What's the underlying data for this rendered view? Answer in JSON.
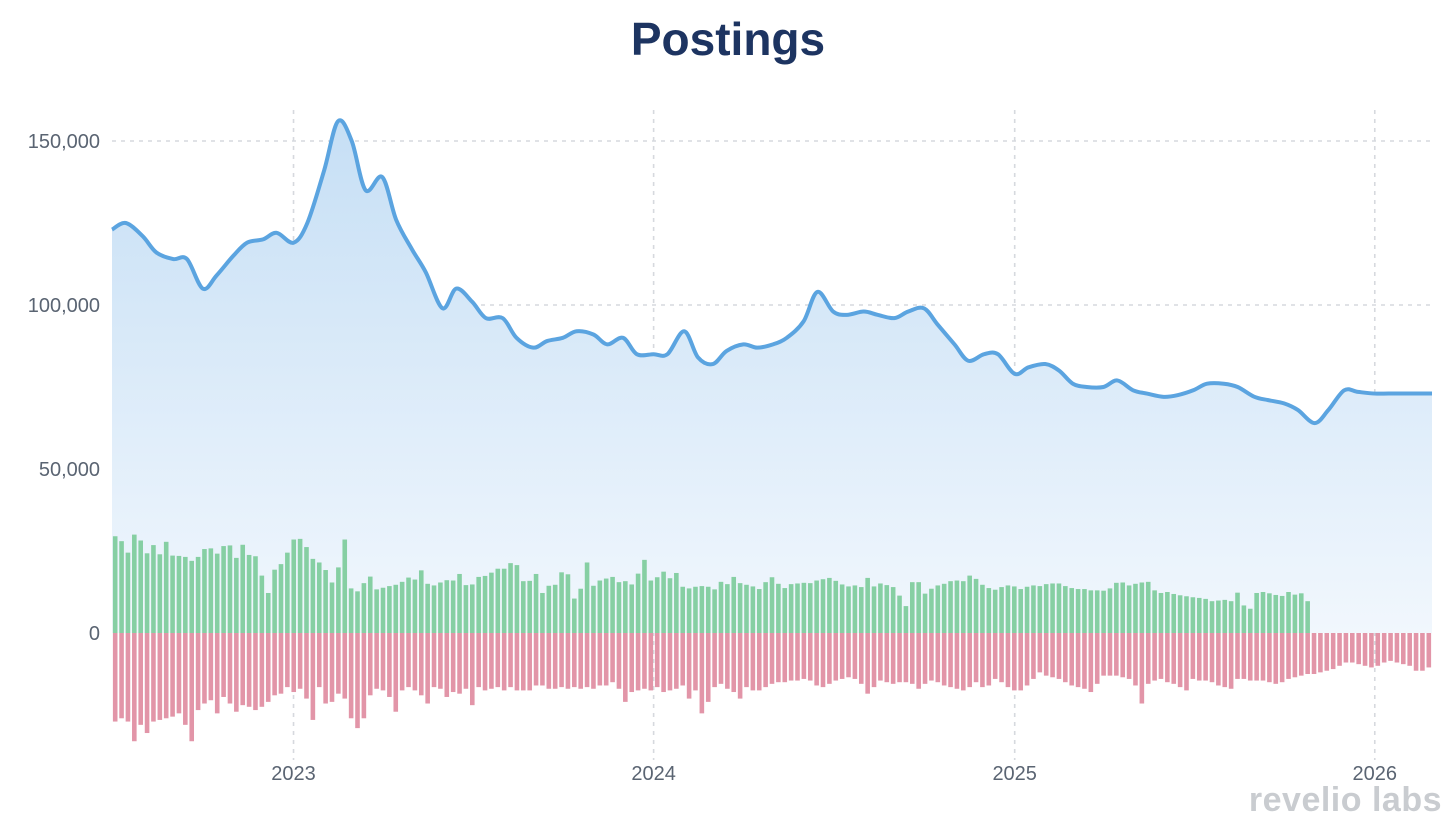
{
  "title": "Postings",
  "brand": "revelio labs",
  "chart_data": {
    "type": "area",
    "title": "Postings",
    "xlabel": "",
    "ylabel": "",
    "x_range": [
      "2022-07-01",
      "2026-02-28"
    ],
    "ylim": [
      -35000,
      165000
    ],
    "y_ticks": [
      0,
      50000,
      100000,
      150000
    ],
    "y_tick_labels": [
      "0",
      "50,000",
      "100,000",
      "150,000"
    ],
    "x_ticks": [
      "2023-01-01",
      "2024-01-01",
      "2025-01-01",
      "2026-01-01"
    ],
    "x_tick_labels": [
      "2023",
      "2024",
      "2025",
      "2026"
    ],
    "grid": true,
    "legend": "none",
    "colors": {
      "line": "#5ba4e0",
      "area_top": "#c6dff5",
      "area_bottom": "#f1f7fd",
      "positive_bars": "#86cfa3",
      "negative_bars": "#e295a8"
    },
    "series": [
      {
        "kind": "line",
        "x": [
          "2022-07-01",
          "2022-07-15",
          "2022-08-01",
          "2022-08-15",
          "2022-09-01",
          "2022-09-15",
          "2022-10-01",
          "2022-10-15",
          "2022-11-01",
          "2022-11-15",
          "2022-12-01",
          "2022-12-15",
          "2023-01-01",
          "2023-01-15",
          "2023-02-01",
          "2023-02-15",
          "2023-03-01",
          "2023-03-15",
          "2023-04-01",
          "2023-04-15",
          "2023-05-01",
          "2023-05-15",
          "2023-06-01",
          "2023-06-15",
          "2023-07-01",
          "2023-07-15",
          "2023-08-01",
          "2023-08-15",
          "2023-09-01",
          "2023-09-15",
          "2023-10-01",
          "2023-10-15",
          "2023-11-01",
          "2023-11-15",
          "2023-12-01",
          "2023-12-15",
          "2024-01-01",
          "2024-01-15",
          "2024-02-01",
          "2024-02-15",
          "2024-03-01",
          "2024-03-15",
          "2024-04-01",
          "2024-04-15",
          "2024-05-01",
          "2024-05-15",
          "2024-06-01",
          "2024-06-15",
          "2024-07-01",
          "2024-07-15",
          "2024-08-01",
          "2024-08-15",
          "2024-09-01",
          "2024-09-15",
          "2024-10-01",
          "2024-10-15",
          "2024-11-01",
          "2024-11-15",
          "2024-12-01",
          "2024-12-15",
          "2025-01-01",
          "2025-01-15",
          "2025-02-01",
          "2025-02-15",
          "2025-03-01",
          "2025-03-15",
          "2025-04-01",
          "2025-04-15",
          "2025-05-01",
          "2025-05-15",
          "2025-06-01",
          "2025-06-15",
          "2025-07-01",
          "2025-07-15",
          "2025-08-01",
          "2025-08-15",
          "2025-09-01",
          "2025-09-15",
          "2025-10-01",
          "2025-10-15",
          "2025-11-01",
          "2025-11-15",
          "2025-12-01",
          "2025-12-15",
          "2026-01-01",
          "2026-01-15",
          "2026-02-01",
          "2026-02-15",
          "2026-02-28"
        ],
        "values": [
          123000,
          125000,
          121000,
          116000,
          114000,
          114000,
          105000,
          109000,
          115000,
          119000,
          120000,
          122000,
          119000,
          125000,
          141000,
          156000,
          150000,
          135000,
          139000,
          126000,
          117000,
          110000,
          99000,
          105000,
          101000,
          96000,
          96000,
          90000,
          87000,
          89000,
          90000,
          92000,
          91000,
          88000,
          90000,
          85000,
          85000,
          85000,
          92000,
          84000,
          82000,
          86000,
          88000,
          87000,
          88000,
          90000,
          95000,
          104000,
          98000,
          97000,
          98000,
          97000,
          96000,
          98000,
          99000,
          94000,
          88000,
          83000,
          85000,
          85000,
          79000,
          81000,
          82000,
          80000,
          76000,
          75000,
          75000,
          77000,
          74000,
          73000,
          72000,
          72500,
          74000,
          76000,
          76000,
          75000,
          72000,
          71000,
          70000,
          68000,
          64000,
          68000,
          74000,
          73500,
          73000,
          73000,
          73000,
          73000,
          73000
        ]
      },
      {
        "kind": "bars",
        "name_positive": "",
        "name_negative": "",
        "x_start": "2022-07-01",
        "x_end": "2026-02-28",
        "positive": [
          29500,
          28000,
          24500,
          30000,
          28200,
          24300,
          26800,
          24000,
          27800,
          23600,
          23500,
          23200,
          22000,
          23200,
          25600,
          25800,
          24200,
          26500,
          26700,
          22900,
          26900,
          23800,
          23400,
          17500,
          12200,
          19300,
          21000,
          24500,
          28500,
          28700,
          26200,
          22600,
          21500,
          19200,
          15400,
          20000,
          28500,
          13600,
          12700,
          15200,
          17200,
          13300,
          13800,
          14300,
          14700,
          15600,
          16900,
          16300,
          19100,
          15000,
          14500,
          15400,
          16100,
          16000,
          18000,
          14600,
          14800,
          17100,
          17400,
          18400,
          19600,
          19600,
          21300,
          20700,
          15800,
          15900,
          18000,
          12200,
          14400,
          14700,
          18500,
          17900,
          10500,
          13500,
          21500,
          14400,
          16000,
          16600,
          17100,
          15500,
          15800,
          14800,
          18100,
          22300,
          16000,
          17000,
          18700,
          16700,
          18300,
          14100,
          13600,
          14100,
          14300,
          14100,
          13300,
          15600,
          14900,
          17100,
          15200,
          14700,
          14200,
          13400,
          15500,
          17000,
          15000,
          13700,
          14900,
          15100,
          15300,
          15200,
          16000,
          16400,
          16800,
          15900,
          14800,
          14200,
          14500,
          14000,
          16800,
          14200,
          15100,
          14600,
          14000,
          11400,
          8200,
          15500,
          15500,
          12000,
          13500,
          14500,
          15000,
          15800,
          16000,
          15800,
          17500,
          16500,
          14700,
          13700,
          13200,
          14000,
          14500,
          14200,
          13400,
          14100,
          14500,
          14300,
          14900,
          15100,
          15100,
          14300,
          13700,
          13400,
          13400,
          13000,
          13000,
          12900,
          13600,
          15300,
          15400,
          14500,
          15000,
          15400,
          15600,
          13000,
          12200,
          12500,
          11900,
          11500,
          11200,
          10900,
          10700,
          10400,
          9700,
          9900,
          10100,
          9700,
          12300,
          8400,
          7400,
          12200,
          12500,
          12100,
          11600,
          11300,
          12500,
          11700,
          12100,
          9700
        ]
      },
      {
        "kind": "bars",
        "negative": [
          -27000,
          -26000,
          -27000,
          -33000,
          -28000,
          -30500,
          -27000,
          -26500,
          -26000,
          -25500,
          -24500,
          -28000,
          -33000,
          -23500,
          -21500,
          -20500,
          -24500,
          -19500,
          -21500,
          -24000,
          -22000,
          -22500,
          -23500,
          -22500,
          -21000,
          -19000,
          -18500,
          -16500,
          -18000,
          -17000,
          -20000,
          -26500,
          -16500,
          -21500,
          -21000,
          -18500,
          -20000,
          -26000,
          -29000,
          -26000,
          -19000,
          -17000,
          -17500,
          -19500,
          -24000,
          -17500,
          -16500,
          -17500,
          -19000,
          -21500,
          -16500,
          -17000,
          -19500,
          -18000,
          -18500,
          -17000,
          -22000,
          -16500,
          -17500,
          -17000,
          -16500,
          -17500,
          -16500,
          -17500,
          -17500,
          -17500,
          -16000,
          -16000,
          -17000,
          -17000,
          -16500,
          -17000,
          -16500,
          -17000,
          -16500,
          -17000,
          -16000,
          -16000,
          -15000,
          -17000,
          -21000,
          -18000,
          -17500,
          -17000,
          -17500,
          -16500,
          -18000,
          -17500,
          -17000,
          -16000,
          -20000,
          -17500,
          -24500,
          -21000,
          -16500,
          -15500,
          -17000,
          -18000,
          -20000,
          -16500,
          -17500,
          -17500,
          -16500,
          -15500,
          -15000,
          -15000,
          -14500,
          -14500,
          -14000,
          -14500,
          -16000,
          -16500,
          -15500,
          -14500,
          -14000,
          -13500,
          -14000,
          -15500,
          -18500,
          -16500,
          -14500,
          -15000,
          -15500,
          -15000,
          -15000,
          -15500,
          -17000,
          -15500,
          -14500,
          -15000,
          -16000,
          -16500,
          -17000,
          -17500,
          -16500,
          -15000,
          -16500,
          -16000,
          -14000,
          -15000,
          -16500,
          -17500,
          -17500,
          -16000,
          -14000,
          -12000,
          -13000,
          -13500,
          -14000,
          -15000,
          -16000,
          -16500,
          -17000,
          -18000,
          -15500,
          -13000,
          -13000,
          -13000,
          -13500,
          -14000,
          -16000,
          -21500,
          -15500,
          -14500,
          -14000,
          -15000,
          -15500,
          -16500,
          -17500,
          -14000,
          -14500,
          -14500,
          -15000,
          -16000,
          -16500,
          -17000,
          -14000,
          -14000,
          -14500,
          -14500,
          -14500,
          -15000,
          -15500,
          -15000,
          -14000,
          -13500,
          -13000,
          -12500,
          -12500,
          -12000,
          -11500,
          -11000,
          -10000,
          -9000,
          -9000,
          -9500,
          -10000,
          -10500,
          -10000,
          -9000,
          -8500,
          -9000,
          -9500,
          -10000,
          -11500,
          -11500,
          -10500
        ]
      }
    ]
  }
}
